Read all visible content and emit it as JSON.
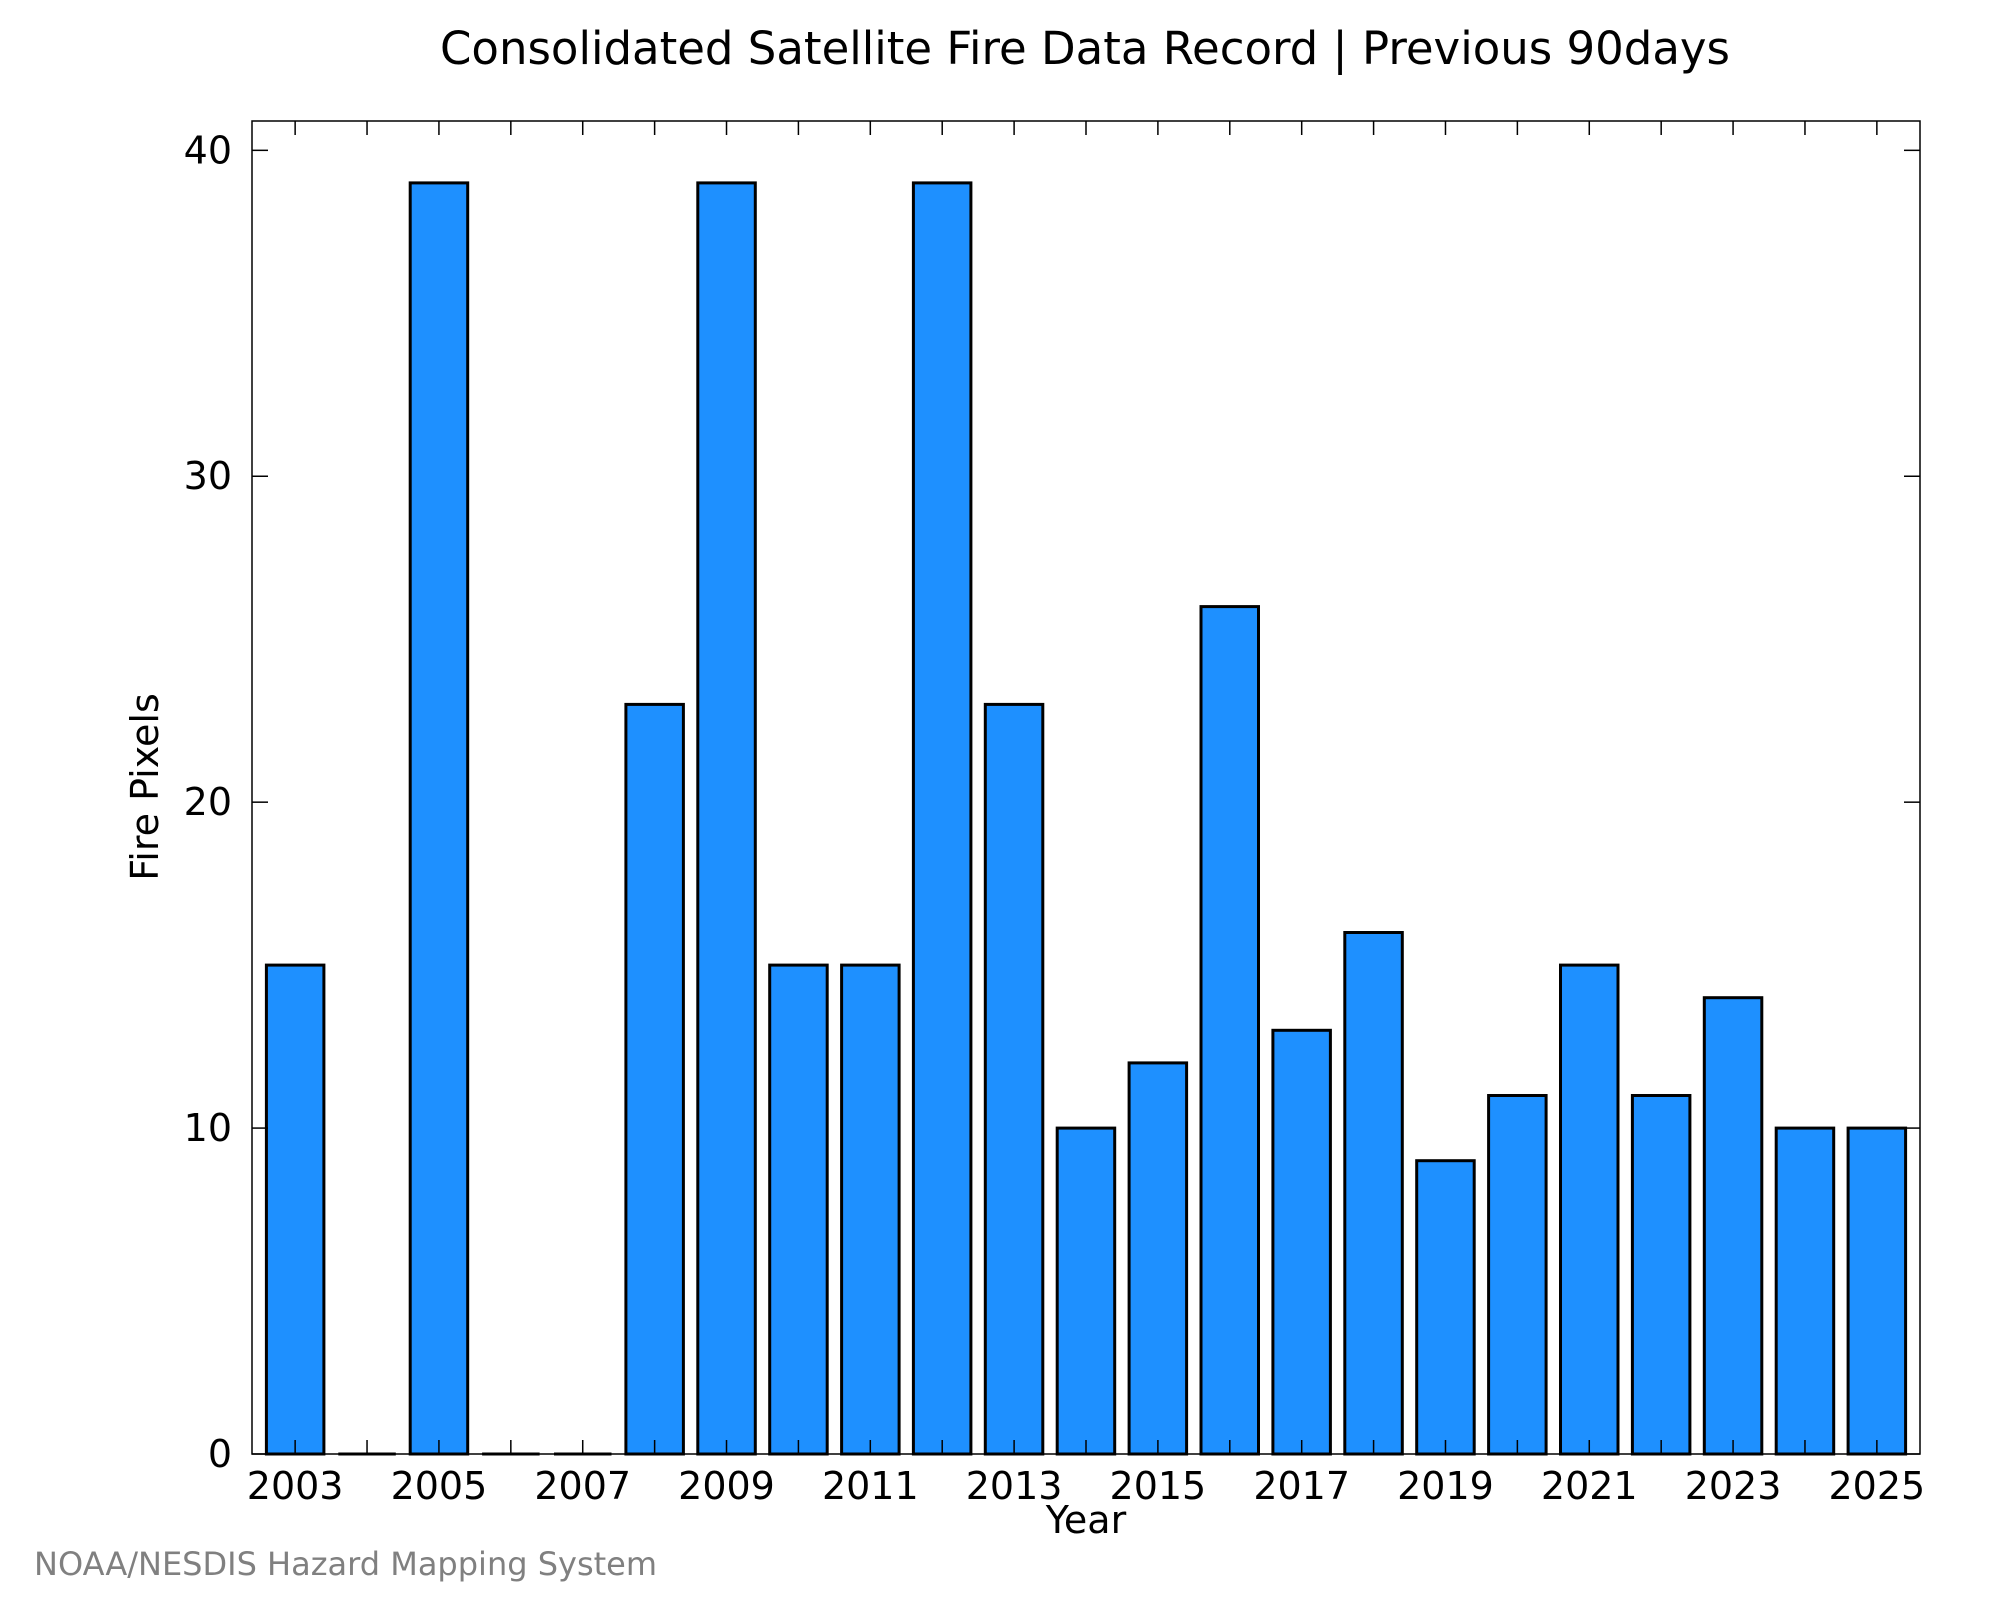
{
  "chart_data": {
    "type": "bar",
    "title": "Consolidated Satellite Fire Data Record | Previous 90days",
    "xlabel": "Year",
    "ylabel": "Fire Pixels",
    "categories": [
      "2003",
      "2004",
      "2005",
      "2006",
      "2007",
      "2008",
      "2009",
      "2010",
      "2011",
      "2012",
      "2013",
      "2014",
      "2015",
      "2016",
      "2017",
      "2018",
      "2019",
      "2020",
      "2021",
      "2022",
      "2023",
      "2024",
      "2025"
    ],
    "values": [
      15,
      0,
      39,
      0,
      0,
      23,
      39,
      15,
      15,
      39,
      23,
      10,
      12,
      26,
      13,
      16,
      9,
      11,
      15,
      11,
      14,
      10,
      10
    ],
    "x_tick_labels": [
      "2003",
      "2005",
      "2007",
      "2009",
      "2011",
      "2013",
      "2015",
      "2017",
      "2019",
      "2021",
      "2023",
      "2025"
    ],
    "y_ticks": [
      0,
      10,
      20,
      30,
      40
    ],
    "ylim": [
      0,
      40.9
    ],
    "grid": false,
    "bar_color": "#1e90ff",
    "bar_edge_color": "#000000"
  },
  "credit": "NOAA/NESDIS Hazard Mapping System"
}
